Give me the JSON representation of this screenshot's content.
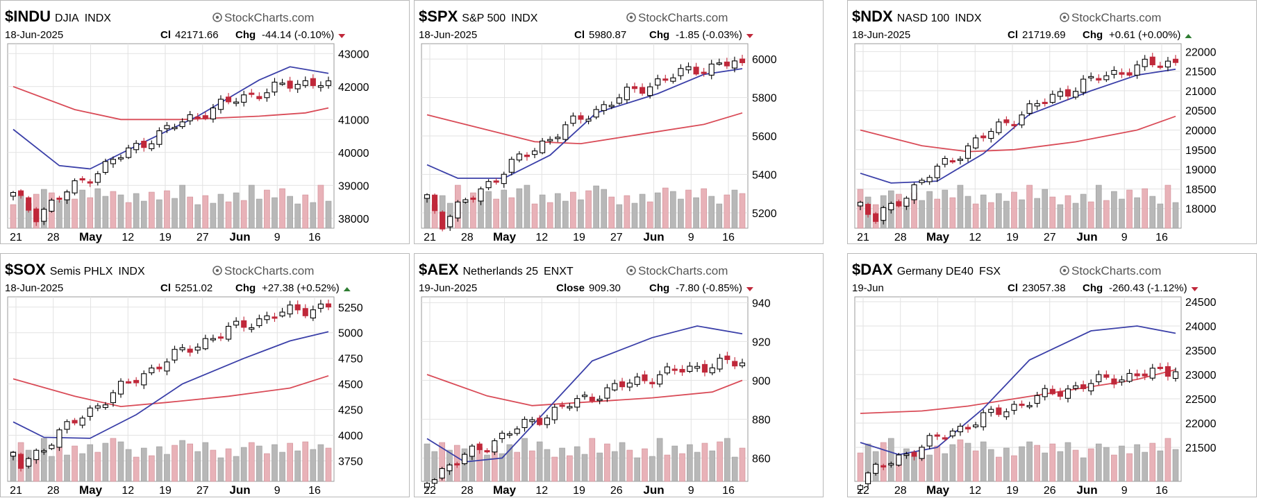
{
  "brand": "StockCharts.com",
  "colors": {
    "up": "#000000",
    "down": "#c0283a",
    "ma_short": "#3a3fa8",
    "ma_long": "#d94b57",
    "vol_up": "#b8b8b8",
    "vol_down": "#e8b2b8",
    "grid": "#e2e2e2",
    "arrow_down": "#c0283a",
    "arrow_up": "#2e7d32"
  },
  "panels": [
    {
      "symbol": "$INDU",
      "name": "DJIA",
      "exchange": "INDX",
      "date": "18-Jun-2025",
      "close_label": "Cl",
      "close": "42171.66",
      "chg_label": "Chg",
      "chg": "-44.14 (-0.10%)",
      "direction": "down",
      "xticks": [
        "21",
        "28",
        "May",
        "12",
        "19",
        "27",
        "Jun",
        "9",
        "16"
      ],
      "chart_data": {
        "type": "candlestick",
        "ylim": [
          37700,
          43300
        ],
        "yticks": [
          43000,
          42000,
          41000,
          40000,
          39000,
          38000
        ],
        "candles": 42,
        "first": 38700,
        "last": 42172,
        "low_point": 38100,
        "low_at": 3,
        "ma_short": [
          [
            0,
            40700
          ],
          [
            6,
            39600
          ],
          [
            10,
            39500
          ],
          [
            16,
            40200
          ],
          [
            24,
            41100
          ],
          [
            32,
            42200
          ],
          [
            36,
            42600
          ],
          [
            41,
            42400
          ]
        ],
        "ma_long": [
          [
            0,
            42000
          ],
          [
            8,
            41300
          ],
          [
            14,
            41000
          ],
          [
            22,
            41000
          ],
          [
            32,
            41100
          ],
          [
            38,
            41200
          ],
          [
            41,
            41350
          ]
        ]
      }
    },
    {
      "symbol": "$SPX",
      "name": "S&P 500",
      "exchange": "INDX",
      "date": "18-Jun-2025",
      "close_label": "Cl",
      "close": "5980.87",
      "chg_label": "Chg",
      "chg": "-1.85 (-0.03%)",
      "direction": "down",
      "xticks": [
        "21",
        "28",
        "May",
        "12",
        "19",
        "27",
        "Jun",
        "9",
        "16"
      ],
      "chart_data": {
        "type": "candlestick",
        "ylim": [
          5120,
          6080
        ],
        "yticks": [
          6000,
          5800,
          5600,
          5400,
          5200
        ],
        "candles": 42,
        "first": 5280,
        "last": 5981,
        "low_point": 5150,
        "low_at": 2,
        "ma_short": [
          [
            0,
            5450
          ],
          [
            4,
            5380
          ],
          [
            10,
            5380
          ],
          [
            16,
            5500
          ],
          [
            22,
            5720
          ],
          [
            30,
            5820
          ],
          [
            36,
            5920
          ],
          [
            41,
            5950
          ]
        ],
        "ma_long": [
          [
            0,
            5710
          ],
          [
            8,
            5630
          ],
          [
            14,
            5570
          ],
          [
            20,
            5560
          ],
          [
            28,
            5610
          ],
          [
            36,
            5660
          ],
          [
            41,
            5720
          ]
        ]
      }
    },
    {
      "symbol": "$NDX",
      "name": "NASD 100",
      "exchange": "INDX",
      "date": "18-Jun-2025",
      "close_label": "Cl",
      "close": "21719.69",
      "chg_label": "Chg",
      "chg": "+0.61 (+0.00%)",
      "direction": "up",
      "xticks": [
        "21",
        "28",
        "May",
        "12",
        "19",
        "27",
        "Jun",
        "9",
        "16"
      ],
      "chart_data": {
        "type": "candlestick",
        "ylim": [
          17500,
          22200
        ],
        "yticks": [
          22000,
          21500,
          21000,
          20500,
          20000,
          19500,
          19000,
          18500,
          18000
        ],
        "candles": 42,
        "first": 18100,
        "last": 21720,
        "low_point": 17700,
        "low_at": 2,
        "ma_short": [
          [
            0,
            18900
          ],
          [
            4,
            18650
          ],
          [
            10,
            18700
          ],
          [
            16,
            19400
          ],
          [
            22,
            20400
          ],
          [
            30,
            21000
          ],
          [
            36,
            21400
          ],
          [
            41,
            21550
          ]
        ],
        "ma_long": [
          [
            0,
            20000
          ],
          [
            8,
            19600
          ],
          [
            14,
            19450
          ],
          [
            20,
            19500
          ],
          [
            28,
            19700
          ],
          [
            36,
            20000
          ],
          [
            41,
            20350
          ]
        ]
      }
    },
    {
      "symbol": "$SOX",
      "name": "Semis PHLX",
      "exchange": "INDX",
      "date": "18-Jun-2025",
      "close_label": "Cl",
      "close": "5251.02",
      "chg_label": "Chg",
      "chg": "+27.38 (+0.52%)",
      "direction": "up",
      "xticks": [
        "21",
        "28",
        "May",
        "12",
        "19",
        "27",
        "Jun",
        "9",
        "16"
      ],
      "chart_data": {
        "type": "candlestick",
        "ylim": [
          3550,
          5350
        ],
        "yticks": [
          5250,
          5000,
          4750,
          4500,
          4250,
          4000,
          3750
        ],
        "candles": 42,
        "first": 3800,
        "last": 5251,
        "low_point": 3700,
        "low_at": 1,
        "ma_short": [
          [
            0,
            4130
          ],
          [
            4,
            3980
          ],
          [
            10,
            3970
          ],
          [
            16,
            4200
          ],
          [
            22,
            4500
          ],
          [
            30,
            4750
          ],
          [
            36,
            4920
          ],
          [
            41,
            5010
          ]
        ],
        "ma_long": [
          [
            0,
            4550
          ],
          [
            8,
            4380
          ],
          [
            14,
            4280
          ],
          [
            20,
            4320
          ],
          [
            28,
            4380
          ],
          [
            36,
            4460
          ],
          [
            41,
            4580
          ]
        ]
      }
    },
    {
      "symbol": "$AEX",
      "name": "Netherlands 25",
      "exchange": "ENXT",
      "date": "19-Jun-2025",
      "close_label": "Close",
      "close": "909.30",
      "chg_label": "Chg",
      "chg": "-7.80 (-0.85%)",
      "direction": "down",
      "xticks": [
        "22",
        "28",
        "May",
        "12",
        "19",
        "26",
        "Jun",
        "9",
        "16"
      ],
      "chart_data": {
        "type": "candlestick",
        "ylim": [
          848,
          943
        ],
        "yticks": [
          940,
          920,
          900,
          880,
          860
        ],
        "candles": 43,
        "first": 852,
        "last": 909,
        "low_point": 849,
        "low_at": 0,
        "ma_short": [
          [
            0,
            870
          ],
          [
            5,
            858
          ],
          [
            10,
            860
          ],
          [
            16,
            885
          ],
          [
            22,
            910
          ],
          [
            30,
            922
          ],
          [
            36,
            928
          ],
          [
            42,
            924
          ]
        ],
        "ma_long": [
          [
            0,
            903
          ],
          [
            8,
            892
          ],
          [
            14,
            887
          ],
          [
            22,
            889
          ],
          [
            30,
            891
          ],
          [
            38,
            894
          ],
          [
            42,
            900
          ]
        ]
      }
    },
    {
      "symbol": "$DAX",
      "name": "Germany DE40",
      "exchange": "FSX",
      "date": "19-Jun",
      "close_label": "Cl",
      "close": "23057.38",
      "chg_label": "Chg",
      "chg": "-260.43 (-1.12%)",
      "direction": "down",
      "xticks": [
        "22",
        "28",
        "May",
        "12",
        "19",
        "26",
        "Jun",
        "9",
        "16"
      ],
      "chart_data": {
        "type": "candlestick",
        "ylim": [
          20800,
          24600
        ],
        "yticks": [
          24500,
          24000,
          23500,
          23000,
          22500,
          22000,
          21500
        ],
        "candles": 42,
        "first": 21000,
        "last": 23057,
        "low_point": 20850,
        "low_at": 0,
        "ma_short": [
          [
            0,
            21600
          ],
          [
            5,
            21350
          ],
          [
            10,
            21500
          ],
          [
            16,
            22300
          ],
          [
            22,
            23300
          ],
          [
            30,
            23900
          ],
          [
            36,
            24000
          ],
          [
            41,
            23850
          ]
        ],
        "ma_long": [
          [
            0,
            22200
          ],
          [
            8,
            22250
          ],
          [
            14,
            22350
          ],
          [
            22,
            22550
          ],
          [
            30,
            22750
          ],
          [
            36,
            22900
          ],
          [
            41,
            23100
          ]
        ]
      }
    }
  ]
}
